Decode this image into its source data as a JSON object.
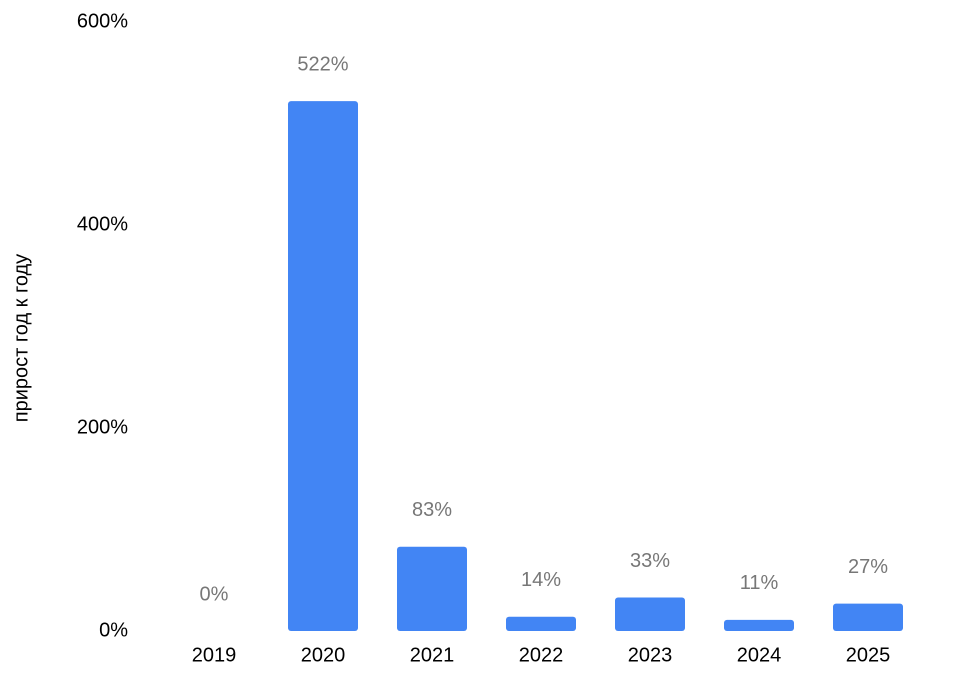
{
  "chart_data": {
    "type": "bar",
    "y_label": "прирост год к году",
    "categories": [
      "2019",
      "2020",
      "2021",
      "2022",
      "2023",
      "2024",
      "2025"
    ],
    "values": [
      0,
      522,
      83,
      14,
      33,
      11,
      27
    ],
    "value_labels": [
      "0%",
      "522%",
      "83%",
      "14%",
      "33%",
      "11%",
      "27%"
    ],
    "color": "#4285f4",
    "ylim": [
      0,
      600
    ],
    "yticks": [
      {
        "value": 0,
        "label": "0%"
      },
      {
        "value": 200,
        "label": "200%"
      },
      {
        "value": 400,
        "label": "400%"
      },
      {
        "value": 600,
        "label": "600%"
      }
    ],
    "grid": false
  }
}
